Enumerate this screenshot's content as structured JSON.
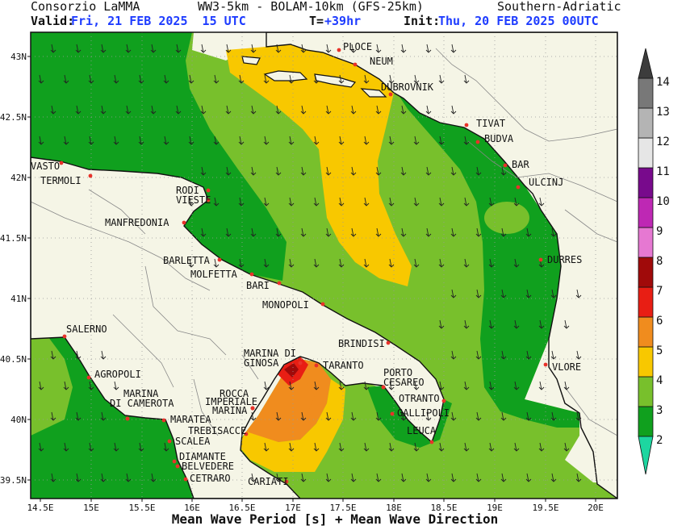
{
  "header": {
    "org": "Consorzio LaMMA",
    "model": "WW3-5km - BOLAM-10km (GFS-25km)",
    "region": "Southern-Adriatic",
    "valid_label": "Valid:",
    "valid_value": "Fri, 21 FEB 2025  15 UTC",
    "t_label": "T=",
    "t_value": "+39hr",
    "init_label": "Init:",
    "init_value": "Thu, 20 FEB 2025 00UTC"
  },
  "footer": {
    "title": "Mean Wave Period [s] + Mean Wave Direction"
  },
  "axes": {
    "lon_ticks": [
      "14.5E",
      "15E",
      "15.5E",
      "16E",
      "16.5E",
      "17E",
      "17.5E",
      "18E",
      "18.5E",
      "19E",
      "19.5E",
      "20E"
    ],
    "lat_ticks": [
      "43N",
      "42.5N",
      "42N",
      "41.5N",
      "41N",
      "40.5N",
      "40N",
      "39.5N"
    ]
  },
  "colorbar": {
    "labels": [
      "2",
      "3",
      "4",
      "5",
      "6",
      "7",
      "8",
      "9",
      "10",
      "11",
      "12",
      "13",
      "14"
    ],
    "colors": [
      "#1dd6a0",
      "#10a01e",
      "#78c02c",
      "#f8c800",
      "#f08c1e",
      "#e81e14",
      "#a00a0a",
      "#e678d2",
      "#be28b4",
      "#780a8c",
      "#e6e6e6",
      "#b4b4b4",
      "#787878",
      "#3c3c3c"
    ]
  },
  "cities": [
    {
      "name": "PLOCE"
    },
    {
      "name": "NEUM"
    },
    {
      "name": "DUBROVNIK"
    },
    {
      "name": "TIVAT"
    },
    {
      "name": "BUDVA"
    },
    {
      "name": "BAR"
    },
    {
      "name": "ULCINJ"
    },
    {
      "name": "DURRES"
    },
    {
      "name": "VLORE"
    },
    {
      "name": "VASTO"
    },
    {
      "name": "TERMOLI"
    },
    {
      "name": "RODI"
    },
    {
      "name": "VIESTE"
    },
    {
      "name": "MANFREDONIA"
    },
    {
      "name": "BARLETTA"
    },
    {
      "name": "MOLFETTA"
    },
    {
      "name": "BARI"
    },
    {
      "name": "MONOPOLI"
    },
    {
      "name": "BRINDISI"
    },
    {
      "name": "SALERNO"
    },
    {
      "name": "AGROPOLI"
    },
    {
      "name": "MARINA DI"
    },
    {
      "name": "GINOSA"
    },
    {
      "name": "TARANTO"
    },
    {
      "name": "PORTO"
    },
    {
      "name": "CESAREO"
    },
    {
      "name": "OTRANTO"
    },
    {
      "name": "GALLIPOLI"
    },
    {
      "name": "LEUCA"
    },
    {
      "name": "MARINA"
    },
    {
      "name": "DI CAMEROTA"
    },
    {
      "name": "ROCCA"
    },
    {
      "name": "IMPERIALE"
    },
    {
      "name": "MARINA"
    },
    {
      "name": "MARATEA"
    },
    {
      "name": "TREBISACCE"
    },
    {
      "name": "SCALEA"
    },
    {
      "name": "DIAMANTE"
    },
    {
      "name": "BELVEDERE"
    },
    {
      "name": "CETRARO"
    },
    {
      "name": "CARIATI"
    }
  ]
}
